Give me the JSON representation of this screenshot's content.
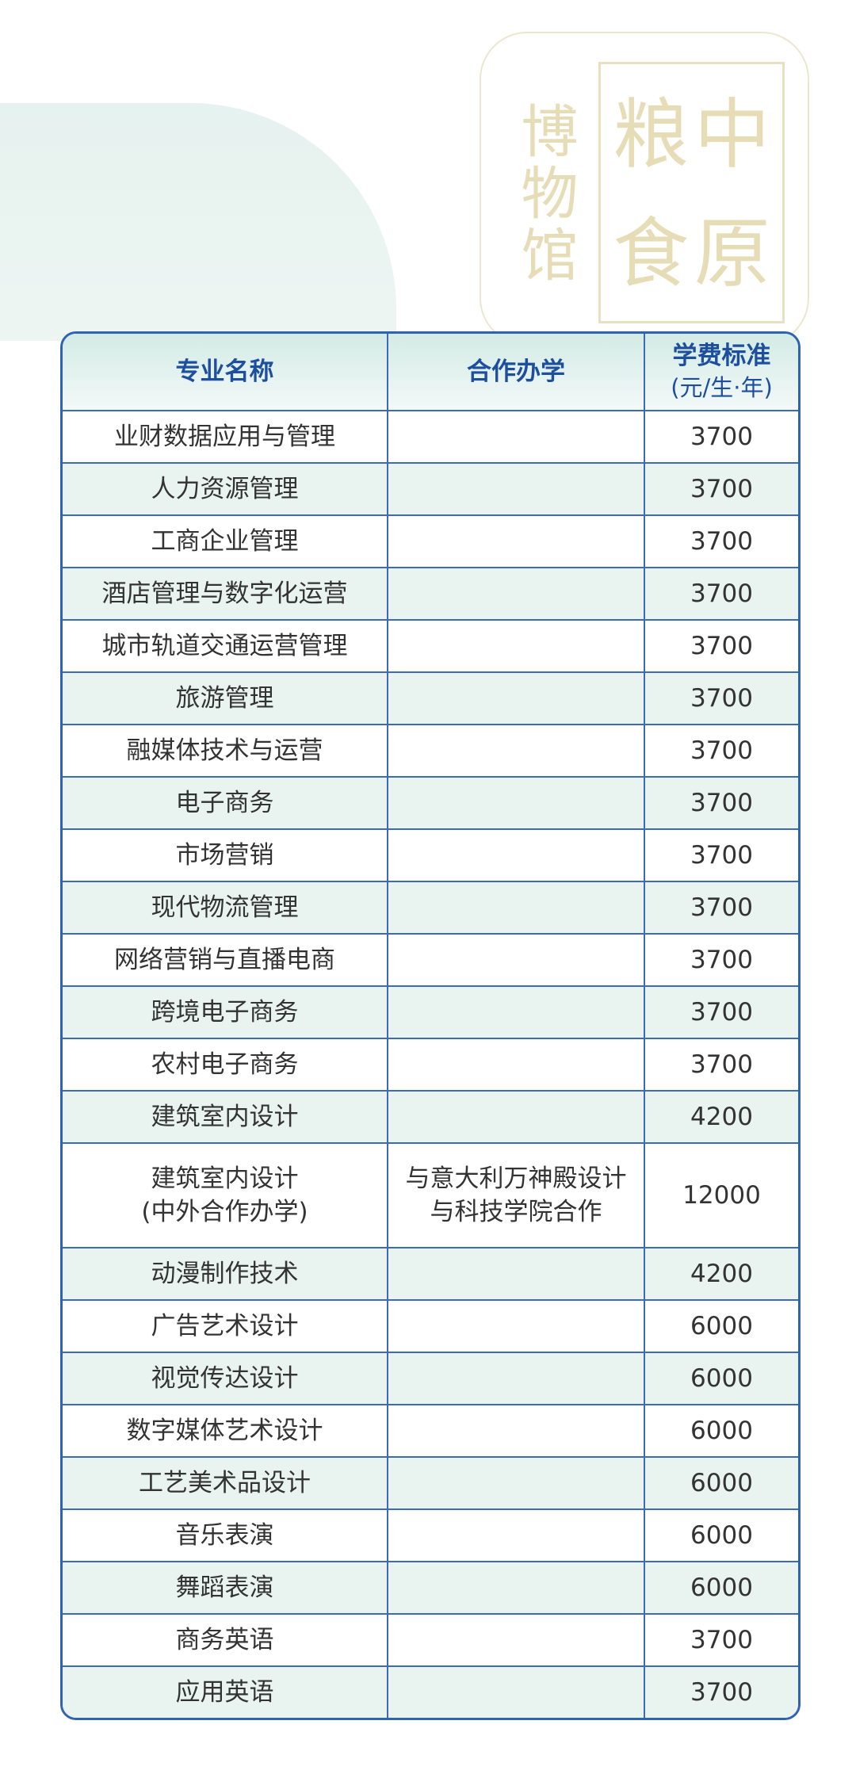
{
  "seal": {
    "main_chars": [
      "中",
      "原",
      "粮",
      "食"
    ],
    "side_text": "博物馆"
  },
  "table": {
    "headers": {
      "name": "专业名称",
      "partner": "合作办学",
      "fee": "学费标准",
      "fee_unit": "(元/生·年)"
    },
    "rows": [
      {
        "name": "业财数据应用与管理",
        "partner": "",
        "fee": "3700"
      },
      {
        "name": "人力资源管理",
        "partner": "",
        "fee": "3700"
      },
      {
        "name": "工商企业管理",
        "partner": "",
        "fee": "3700"
      },
      {
        "name": "酒店管理与数字化运营",
        "partner": "",
        "fee": "3700"
      },
      {
        "name": "城市轨道交通运营管理",
        "partner": "",
        "fee": "3700"
      },
      {
        "name": "旅游管理",
        "partner": "",
        "fee": "3700"
      },
      {
        "name": "融媒体技术与运营",
        "partner": "",
        "fee": "3700"
      },
      {
        "name": "电子商务",
        "partner": "",
        "fee": "3700"
      },
      {
        "name": "市场营销",
        "partner": "",
        "fee": "3700"
      },
      {
        "name": "现代物流管理",
        "partner": "",
        "fee": "3700"
      },
      {
        "name": "网络营销与直播电商",
        "partner": "",
        "fee": "3700"
      },
      {
        "name": "跨境电子商务",
        "partner": "",
        "fee": "3700"
      },
      {
        "name": "农村电子商务",
        "partner": "",
        "fee": "3700"
      },
      {
        "name": "建筑室内设计",
        "partner": "",
        "fee": "4200"
      },
      {
        "name": "建筑室内设计",
        "name_line2": "(中外合作办学)",
        "partner": "与意大利万神殿设计",
        "partner_line2": "与科技学院合作",
        "fee": "12000"
      },
      {
        "name": "动漫制作技术",
        "partner": "",
        "fee": "4200"
      },
      {
        "name": "广告艺术设计",
        "partner": "",
        "fee": "6000"
      },
      {
        "name": "视觉传达设计",
        "partner": "",
        "fee": "6000"
      },
      {
        "name": "数字媒体艺术设计",
        "partner": "",
        "fee": "6000"
      },
      {
        "name": "工艺美术品设计",
        "partner": "",
        "fee": "6000"
      },
      {
        "name": "音乐表演",
        "partner": "",
        "fee": "6000"
      },
      {
        "name": "舞蹈表演",
        "partner": "",
        "fee": "6000"
      },
      {
        "name": "商务英语",
        "partner": "",
        "fee": "3700"
      },
      {
        "name": "应用英语",
        "partner": "",
        "fee": "3700"
      }
    ]
  }
}
